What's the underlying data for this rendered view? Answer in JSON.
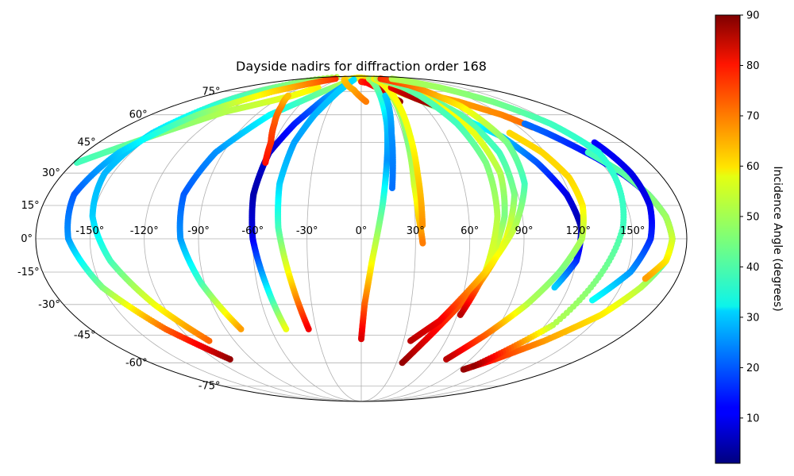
{
  "chart_data": {
    "type": "scatter",
    "projection": "mollweide",
    "title": "Dayside nadirs for diffraction order 168",
    "lon_ticks": [
      "-150°",
      "-120°",
      "-90°",
      "-60°",
      "-30°",
      "0°",
      "30°",
      "60°",
      "90°",
      "120°",
      "150°"
    ],
    "lat_ticks": [
      "75°",
      "60°",
      "45°",
      "30°",
      "15°",
      "0°",
      "-15°",
      "-30°",
      "-45°",
      "-60°",
      "-75°"
    ],
    "grid": true,
    "colorbar": {
      "label": "Incidence Angle (degrees)",
      "colormap": "jet",
      "range": [
        1,
        90
      ],
      "ticks": [
        "10",
        "20",
        "30",
        "40",
        "50",
        "60",
        "70",
        "80",
        "90"
      ]
    },
    "tracks": [
      {
        "lon": [
          -178,
          -165,
          -150,
          -135,
          -120,
          -100,
          -80,
          -65
        ],
        "lat": [
          35,
          41,
          48,
          55,
          62,
          67,
          72,
          78
        ],
        "inc": [
          40,
          42,
          45,
          47,
          50,
          52,
          55,
          58
        ]
      },
      {
        "lon": [
          -30,
          -15,
          0,
          20,
          40,
          60,
          80,
          100,
          120,
          130
        ],
        "lat": [
          86,
          87,
          87,
          86,
          85,
          80,
          73,
          68,
          60,
          53
        ],
        "inc": [
          58,
          58,
          58,
          59,
          60,
          62,
          63,
          65,
          67,
          70
        ]
      },
      {
        "lon": [
          128,
          135,
          142,
          150,
          158,
          165,
          170,
          172,
          170,
          162,
          150,
          130,
          110,
          95
        ],
        "lat": [
          55,
          50,
          44,
          37,
          29,
          20,
          10,
          0,
          -10,
          -22,
          -35,
          -48,
          -58,
          -64
        ],
        "inc": [
          22,
          20,
          16,
          12,
          10,
          15,
          22,
          30,
          40,
          50,
          58,
          65,
          75,
          88
        ]
      },
      {
        "lon": [
          148,
          158,
          165,
          170,
          172,
          170,
          162
        ],
        "lat": [
          40,
          30,
          20,
          10,
          0,
          -10,
          -18
        ],
        "inc": [
          40,
          42,
          45,
          48,
          52,
          58,
          65
        ]
      },
      {
        "lon": [
          10,
          25,
          40,
          60,
          80,
          100,
          110,
          118,
          122,
          120,
          112
        ],
        "lat": [
          85,
          82,
          78,
          70,
          60,
          48,
          35,
          20,
          5,
          -10,
          -22
        ],
        "inc": [
          60,
          58,
          55,
          50,
          40,
          30,
          20,
          10,
          5,
          15,
          30
        ]
      },
      {
        "lon": [
          108,
          118,
          124,
          125,
          122,
          112,
          100,
          85,
          70
        ],
        "lat": [
          50,
          40,
          28,
          15,
          0,
          -15,
          -30,
          -45,
          -58
        ],
        "inc": [
          60,
          60,
          60,
          58,
          50,
          45,
          50,
          70,
          85
        ]
      },
      {
        "lon": [
          160,
          163,
          163,
          160,
          152,
          138
        ],
        "lat": [
          45,
          30,
          15,
          0,
          -15,
          -28
        ],
        "inc": [
          12,
          10,
          10,
          15,
          25,
          35
        ]
      },
      {
        "lon": [
          -120,
          -140,
          -152,
          -155,
          -150,
          -140,
          -125,
          -108
        ],
        "lat": [
          88,
          70,
          50,
          30,
          10,
          -10,
          -30,
          -48
        ],
        "inc": [
          50,
          40,
          32,
          28,
          30,
          40,
          55,
          70
        ]
      },
      {
        "lon": [
          -80,
          -115,
          -140,
          -158,
          -165,
          -162,
          -150,
          -130,
          -108
        ],
        "lat": [
          86,
          75,
          60,
          40,
          20,
          0,
          -22,
          -42,
          -58
        ],
        "inc": [
          75,
          60,
          45,
          30,
          20,
          25,
          45,
          70,
          88
        ]
      },
      {
        "lon": [
          -25,
          -50,
          -78,
          -95,
          -102,
          -100,
          -92,
          -80
        ],
        "lat": [
          85,
          75,
          60,
          40,
          20,
          0,
          -20,
          -42
        ],
        "inc": [
          55,
          45,
          35,
          25,
          20,
          25,
          40,
          65
        ]
      },
      {
        "lon": [
          -25,
          -40,
          -52,
          -60,
          -62,
          -60,
          -55,
          -50
        ],
        "lat": [
          82,
          70,
          55,
          40,
          20,
          0,
          -20,
          -42
        ],
        "inc": [
          30,
          25,
          15,
          8,
          5,
          10,
          30,
          55
        ]
      },
      {
        "lon": [
          -20,
          -30,
          -40,
          -46,
          -48,
          -46,
          -40,
          -35
        ],
        "lat": [
          85,
          75,
          60,
          45,
          25,
          5,
          -20,
          -42
        ],
        "inc": [
          32,
          30,
          28,
          26,
          30,
          40,
          60,
          80
        ]
      },
      {
        "lon": [
          -60,
          -62,
          -68,
          -76,
          -85
        ],
        "lat": [
          35,
          45,
          55,
          65,
          72
        ],
        "inc": [
          78,
          75,
          72,
          68,
          62
        ]
      },
      {
        "lon": [
          -50,
          -30,
          -10,
          5
        ],
        "lat": [
          86,
          82,
          76,
          68
        ],
        "inc": [
          60,
          62,
          64,
          68
        ]
      },
      {
        "lon": [
          0,
          12,
          24,
          33,
          40
        ],
        "lat": [
          83,
          82,
          78,
          72,
          68
        ],
        "inc": [
          75,
          78,
          80,
          84,
          88
        ]
      },
      {
        "lon": [
          24,
          22,
          20,
          16,
          12,
          6,
          2,
          0
        ],
        "lat": [
          86,
          72,
          55,
          35,
          15,
          -10,
          -30,
          -47
        ],
        "inc": [
          50,
          40,
          30,
          25,
          40,
          55,
          70,
          82
        ]
      },
      {
        "lon": [
          28,
          22,
          18
        ],
        "lat": [
          72,
          50,
          23
        ],
        "inc": [
          30,
          25,
          22
        ]
      },
      {
        "lon": [
          40,
          35,
          32,
          31,
          32,
          34
        ],
        "lat": [
          86,
          70,
          45,
          25,
          10,
          -2
        ],
        "inc": [
          55,
          50,
          45,
          52,
          60,
          68
        ]
      },
      {
        "lon": [
          40,
          37,
          35,
          34,
          34
        ],
        "lat": [
          86,
          70,
          50,
          30,
          6
        ],
        "inc": [
          58,
          57,
          55,
          60,
          66
        ]
      },
      {
        "lon": [
          45,
          52,
          60,
          70
        ],
        "lat": [
          78,
          74,
          70,
          66
        ],
        "inc": [
          80,
          84,
          86,
          88
        ]
      },
      {
        "lon": [
          48,
          70,
          85,
          90,
          88,
          80,
          68,
          50,
          35
        ],
        "lat": [
          86,
          75,
          60,
          40,
          20,
          0,
          -20,
          -42,
          -60
        ],
        "inc": [
          50,
          45,
          42,
          40,
          45,
          55,
          65,
          78,
          88
        ]
      },
      {
        "lon": [
          55,
          72,
          82,
          84,
          80,
          72,
          62
        ],
        "lat": [
          86,
          70,
          50,
          30,
          10,
          -10,
          -35
        ],
        "inc": [
          60,
          58,
          55,
          50,
          45,
          55,
          85
        ]
      },
      {
        "lon": [
          58,
          68,
          75,
          78,
          76,
          70
        ],
        "lat": [
          86,
          72,
          55,
          35,
          10,
          -15
        ],
        "inc": [
          45,
          42,
          40,
          45,
          50,
          55
        ]
      },
      {
        "lon": [
          60,
          80,
          95,
          100,
          96,
          85,
          70,
          50,
          35
        ],
        "lat": [
          86,
          80,
          65,
          45,
          25,
          5,
          -15,
          -38,
          -48
        ],
        "inc": [
          75,
          70,
          58,
          45,
          40,
          50,
          60,
          80,
          85
        ]
      },
      {
        "lon": [
          95,
          118,
          135,
          148,
          155,
          145,
          125,
          100
        ],
        "lat": [
          86,
          78,
          68,
          55,
          40,
          5,
          -40,
          -62
        ],
        "inc": [
          50,
          48,
          45,
          40,
          38,
          40,
          50,
          88
        ]
      }
    ]
  }
}
